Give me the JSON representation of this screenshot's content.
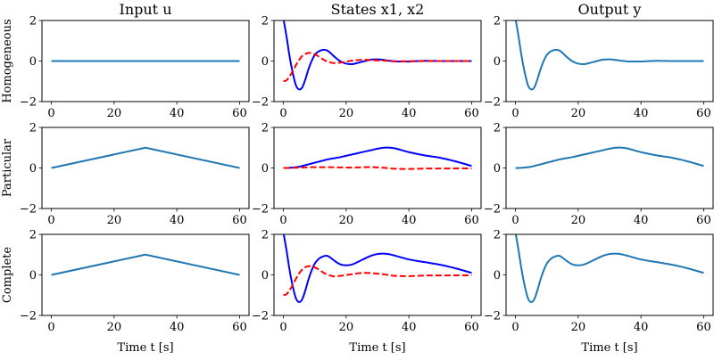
{
  "chart_data": {
    "type": "line",
    "grid": false,
    "xlim": [
      -3,
      63
    ],
    "ylim": [
      -2,
      2
    ],
    "xticks": [
      "0",
      "20",
      "40",
      "60"
    ],
    "yticks": [
      "2",
      "0",
      "−2"
    ],
    "xtick_values": [
      0,
      20,
      40,
      60
    ],
    "ytick_values": [
      2,
      0,
      -2
    ],
    "column_titles": [
      "Input u",
      "States x1, x2",
      "Output y"
    ],
    "row_labels": [
      "Homogeneous",
      "Particular",
      "Complete"
    ],
    "xlabel": "Time t [s]",
    "colors": {
      "input": "#1f77b4",
      "x1": "#0000ff",
      "x2": "#ff0000",
      "output": "#1f77b4"
    },
    "t": [
      0,
      1,
      2,
      3,
      4,
      5,
      6,
      7,
      8,
      9,
      10,
      11,
      12,
      13,
      14,
      15,
      16,
      18,
      20,
      22,
      24,
      26,
      28,
      30,
      32,
      34,
      36,
      40,
      45,
      50,
      55,
      60
    ],
    "panels": [
      {
        "row": 0,
        "col": 0,
        "series": [
          {
            "x": [
              0,
              60
            ],
            "y": [
              0,
              0
            ],
            "color": "#1f77b4",
            "dash": false
          }
        ]
      },
      {
        "row": 0,
        "col": 1,
        "series": [
          {
            "y": [
              2.1,
              1.2,
              0.2,
              -0.6,
              -1.2,
              -1.4,
              -1.3,
              -0.9,
              -0.4,
              0.0,
              0.3,
              0.45,
              0.53,
              0.55,
              0.52,
              0.4,
              0.25,
              0.0,
              -0.13,
              -0.15,
              -0.08,
              0.0,
              0.07,
              0.08,
              0.05,
              0.01,
              -0.02,
              -0.02,
              0.01,
              0,
              0,
              0
            ],
            "color": "#0000ff",
            "dash": false
          },
          {
            "y": [
              -1,
              -0.95,
              -0.75,
              -0.5,
              -0.2,
              0.05,
              0.25,
              0.35,
              0.4,
              0.39,
              0.33,
              0.25,
              0.15,
              0.05,
              -0.02,
              -0.07,
              -0.1,
              -0.08,
              -0.03,
              0.02,
              0.05,
              0.06,
              0.05,
              0.03,
              0.02,
              0,
              -0.01,
              -0.01,
              0,
              0,
              0,
              0
            ],
            "color": "#ff0000",
            "dash": true
          }
        ]
      },
      {
        "row": 0,
        "col": 2,
        "series": [
          {
            "y": [
              2.1,
              1.2,
              0.2,
              -0.6,
              -1.2,
              -1.4,
              -1.3,
              -0.9,
              -0.4,
              0.0,
              0.3,
              0.45,
              0.53,
              0.55,
              0.52,
              0.4,
              0.25,
              0.0,
              -0.13,
              -0.15,
              -0.08,
              0.0,
              0.07,
              0.08,
              0.05,
              0.01,
              -0.02,
              -0.02,
              0.01,
              0,
              0,
              0
            ],
            "color": "#1f77b4",
            "dash": false
          }
        ]
      },
      {
        "row": 1,
        "col": 0,
        "series": [
          {
            "x": [
              0,
              30,
              60
            ],
            "y": [
              0,
              1,
              0
            ],
            "color": "#1f77b4",
            "dash": false
          }
        ]
      },
      {
        "row": 1,
        "col": 1,
        "series": [
          {
            "y": [
              0,
              0,
              0.01,
              0.02,
              0.04,
              0.06,
              0.1,
              0.14,
              0.18,
              0.22,
              0.26,
              0.3,
              0.34,
              0.38,
              0.42,
              0.45,
              0.48,
              0.53,
              0.6,
              0.67,
              0.74,
              0.81,
              0.88,
              0.95,
              1.0,
              1.0,
              0.95,
              0.78,
              0.62,
              0.5,
              0.32,
              0.1
            ],
            "color": "#0000ff",
            "dash": false
          },
          {
            "y": [
              0,
              0,
              0,
              0.01,
              0.01,
              0.02,
              0.02,
              0.03,
              0.03,
              0.04,
              0.04,
              0.04,
              0.04,
              0.04,
              0.04,
              0.04,
              0.03,
              0.03,
              0.02,
              0.02,
              0.03,
              0.04,
              0.04,
              0.03,
              0.01,
              -0.02,
              -0.04,
              -0.05,
              -0.03,
              -0.03,
              -0.02,
              -0.02
            ],
            "color": "#ff0000",
            "dash": true
          }
        ]
      },
      {
        "row": 1,
        "col": 2,
        "series": [
          {
            "y": [
              0,
              0,
              0.01,
              0.02,
              0.04,
              0.06,
              0.1,
              0.14,
              0.18,
              0.22,
              0.26,
              0.3,
              0.34,
              0.38,
              0.42,
              0.45,
              0.48,
              0.53,
              0.6,
              0.67,
              0.74,
              0.81,
              0.88,
              0.95,
              1.0,
              1.0,
              0.95,
              0.78,
              0.62,
              0.5,
              0.32,
              0.1
            ],
            "color": "#1f77b4",
            "dash": false
          }
        ]
      },
      {
        "row": 2,
        "col": 0,
        "series": [
          {
            "x": [
              0,
              30,
              60
            ],
            "y": [
              0,
              1,
              0
            ],
            "color": "#1f77b4",
            "dash": false
          }
        ]
      },
      {
        "row": 2,
        "col": 1,
        "series": [
          {
            "y": [
              2.1,
              1.2,
              0.21,
              -0.58,
              -1.16,
              -1.34,
              -1.2,
              -0.76,
              -0.22,
              0.22,
              0.56,
              0.75,
              0.87,
              0.93,
              0.94,
              0.85,
              0.73,
              0.53,
              0.47,
              0.52,
              0.66,
              0.81,
              0.95,
              1.03,
              1.05,
              1.01,
              0.93,
              0.76,
              0.63,
              0.5,
              0.32,
              0.1
            ],
            "color": "#0000ff",
            "dash": false
          },
          {
            "y": [
              -1,
              -0.95,
              -0.75,
              -0.49,
              -0.19,
              0.07,
              0.27,
              0.38,
              0.43,
              0.43,
              0.37,
              0.29,
              0.19,
              0.09,
              0.02,
              -0.03,
              -0.07,
              -0.05,
              -0.01,
              0.04,
              0.08,
              0.1,
              0.09,
              0.06,
              0.03,
              -0.02,
              -0.05,
              -0.06,
              -0.03,
              -0.03,
              -0.02,
              -0.02
            ],
            "color": "#ff0000",
            "dash": true
          }
        ]
      },
      {
        "row": 2,
        "col": 2,
        "series": [
          {
            "y": [
              2.1,
              1.2,
              0.21,
              -0.58,
              -1.16,
              -1.34,
              -1.2,
              -0.76,
              -0.22,
              0.22,
              0.56,
              0.75,
              0.87,
              0.93,
              0.94,
              0.85,
              0.73,
              0.53,
              0.47,
              0.52,
              0.66,
              0.81,
              0.95,
              1.03,
              1.05,
              1.01,
              0.93,
              0.76,
              0.63,
              0.5,
              0.32,
              0.1
            ],
            "color": "#1f77b4",
            "dash": false
          }
        ]
      }
    ]
  }
}
